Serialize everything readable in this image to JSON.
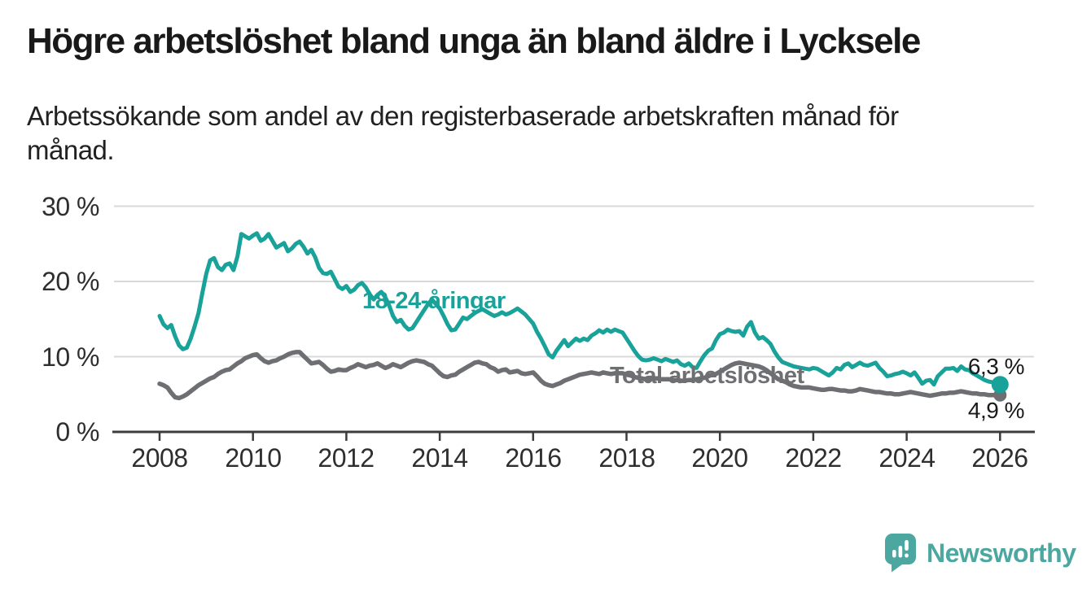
{
  "header": {
    "title": "Högre arbetslöshet bland unga än bland äldre i Lycksele",
    "subtitle": "Arbetssökande som andel av den registerbaserade arbetskraften månad för månad."
  },
  "footer": {
    "brand": "Newsworthy"
  },
  "colors": {
    "youth_line": "#18a29a",
    "total_line": "#6e6f73",
    "grid": "#d9d9d9",
    "axis": "#3c3c3c",
    "text": "#1a1a1a",
    "brand": "#4ba79f"
  },
  "chart_data": {
    "type": "line",
    "title": "Högre arbetslöshet bland unga än bland äldre i Lycksele",
    "subtitle": "Arbetssökande som andel av den registerbaserade arbetskraften månad för månad.",
    "xlim": [
      2008,
      2026
    ],
    "ylim": [
      0,
      30
    ],
    "x_start": 2008,
    "x_step_years": 0.0833333,
    "x_ticks": [
      2008,
      2010,
      2012,
      2014,
      2016,
      2018,
      2020,
      2022,
      2024,
      2026
    ],
    "y_ticks": [
      0,
      10,
      20,
      30
    ],
    "y_tick_suffix": " %",
    "grid": "horizontal-only",
    "legend_position": "inline-labels",
    "series": [
      {
        "name": "18-24-åringar",
        "color": "#18a29a",
        "end_label": "6,3 %",
        "end_value": 6.3,
        "values": [
          15.4,
          14.3,
          13.8,
          14.2,
          12.7,
          11.5,
          11.0,
          11.2,
          12.4,
          14.0,
          15.8,
          18.5,
          21.0,
          22.8,
          23.1,
          21.9,
          21.5,
          22.2,
          22.4,
          21.5,
          23.3,
          26.3,
          26.0,
          25.7,
          26.1,
          26.4,
          25.4,
          25.7,
          26.3,
          25.4,
          24.5,
          24.8,
          25.1,
          24.0,
          24.4,
          25.0,
          25.3,
          24.6,
          23.7,
          24.2,
          23.2,
          21.8,
          21.1,
          21.0,
          21.3,
          20.3,
          19.3,
          19.0,
          19.4,
          18.6,
          18.9,
          19.5,
          19.8,
          19.2,
          18.3,
          17.6,
          18.2,
          18.6,
          17.9,
          16.8,
          15.4,
          14.6,
          14.9,
          14.1,
          13.6,
          13.8,
          14.6,
          15.4,
          16.2,
          17.0,
          17.6,
          17.0,
          16.4,
          15.4,
          14.3,
          13.5,
          13.6,
          14.4,
          15.2,
          15.0,
          15.4,
          15.8,
          16.1,
          16.3,
          16.0,
          15.7,
          15.4,
          15.6,
          15.9,
          15.6,
          15.8,
          16.1,
          16.4,
          16.0,
          15.6,
          15.0,
          14.4,
          13.3,
          12.4,
          11.4,
          10.3,
          9.9,
          10.8,
          11.5,
          12.2,
          11.4,
          11.9,
          12.4,
          12.1,
          12.4,
          12.2,
          12.8,
          13.1,
          13.5,
          13.2,
          13.6,
          13.3,
          13.6,
          13.4,
          13.2,
          12.4,
          11.6,
          10.8,
          10.1,
          9.6,
          9.5,
          9.6,
          9.8,
          9.6,
          9.4,
          9.7,
          9.5,
          9.3,
          9.5,
          9.0,
          8.8,
          9.1,
          8.6,
          8.5,
          9.4,
          10.2,
          10.8,
          11.1,
          12.2,
          13.0,
          13.2,
          13.6,
          13.4,
          13.3,
          13.4,
          12.8,
          14.0,
          14.6,
          13.2,
          12.4,
          12.6,
          12.2,
          11.7,
          10.7,
          9.9,
          9.3,
          9.1,
          8.9,
          8.7,
          8.6,
          8.5,
          8.4,
          8.3,
          8.5,
          8.4,
          8.1,
          7.8,
          7.5,
          7.9,
          8.5,
          8.3,
          8.9,
          9.1,
          8.6,
          8.9,
          9.2,
          8.9,
          8.8,
          9.0,
          9.2,
          8.5,
          8.0,
          7.4,
          7.5,
          7.7,
          7.8,
          8.0,
          7.8,
          7.5,
          7.9,
          7.2,
          6.4,
          6.8,
          6.9,
          6.3,
          7.4,
          7.9,
          8.4,
          8.4,
          8.5,
          8.1,
          8.7,
          8.3,
          8.2,
          7.8,
          7.5,
          7.2,
          6.9,
          6.7,
          6.6,
          6.4,
          6.3
        ]
      },
      {
        "name": "Total arbetslöshet",
        "color": "#6e6f73",
        "end_label": "4,9 %",
        "end_value": 4.9,
        "values": [
          6.4,
          6.2,
          5.9,
          5.2,
          4.6,
          4.5,
          4.7,
          5.0,
          5.4,
          5.8,
          6.2,
          6.5,
          6.8,
          7.1,
          7.3,
          7.7,
          8.0,
          8.2,
          8.3,
          8.7,
          9.1,
          9.4,
          9.8,
          10.0,
          10.2,
          10.3,
          9.8,
          9.4,
          9.2,
          9.4,
          9.5,
          9.8,
          10.0,
          10.3,
          10.5,
          10.6,
          10.6,
          10.1,
          9.6,
          9.1,
          9.2,
          9.3,
          8.9,
          8.4,
          8.0,
          8.1,
          8.3,
          8.2,
          8.2,
          8.5,
          8.7,
          9.0,
          8.8,
          8.6,
          8.8,
          8.9,
          9.1,
          8.8,
          8.5,
          8.7,
          9.0,
          8.8,
          8.6,
          8.9,
          9.2,
          9.4,
          9.5,
          9.4,
          9.3,
          9.0,
          8.8,
          8.3,
          7.8,
          7.4,
          7.3,
          7.5,
          7.6,
          8.0,
          8.3,
          8.6,
          8.9,
          9.2,
          9.3,
          9.1,
          9.0,
          8.6,
          8.4,
          8.0,
          8.2,
          8.3,
          7.9,
          8.0,
          8.1,
          7.8,
          7.7,
          7.8,
          7.9,
          7.4,
          6.8,
          6.4,
          6.2,
          6.1,
          6.3,
          6.5,
          6.8,
          7.0,
          7.2,
          7.4,
          7.6,
          7.7,
          7.8,
          7.9,
          7.8,
          7.7,
          7.9,
          7.8,
          7.7,
          7.8,
          7.8,
          7.8,
          7.6,
          7.5,
          7.3,
          7.2,
          7.1,
          7.0,
          7.0,
          7.1,
          7.1,
          7.0,
          7.0,
          7.0,
          6.9,
          6.9,
          6.8,
          6.8,
          6.9,
          6.9,
          7.0,
          7.1,
          7.2,
          7.4,
          7.6,
          7.7,
          8.0,
          8.3,
          8.6,
          8.9,
          9.1,
          9.2,
          9.1,
          9.0,
          8.9,
          8.8,
          8.7,
          8.5,
          8.2,
          7.8,
          7.4,
          7.0,
          6.8,
          6.6,
          6.3,
          6.1,
          6.0,
          5.9,
          5.9,
          5.9,
          5.8,
          5.7,
          5.6,
          5.6,
          5.7,
          5.7,
          5.6,
          5.5,
          5.5,
          5.4,
          5.4,
          5.5,
          5.7,
          5.6,
          5.5,
          5.4,
          5.3,
          5.3,
          5.2,
          5.1,
          5.1,
          5.0,
          5.0,
          5.1,
          5.2,
          5.3,
          5.2,
          5.1,
          5.0,
          4.9,
          4.8,
          4.9,
          5.0,
          5.1,
          5.1,
          5.2,
          5.2,
          5.3,
          5.4,
          5.3,
          5.2,
          5.1,
          5.1,
          5.0,
          5.0,
          4.9,
          4.9,
          4.9,
          4.9
        ]
      }
    ]
  }
}
